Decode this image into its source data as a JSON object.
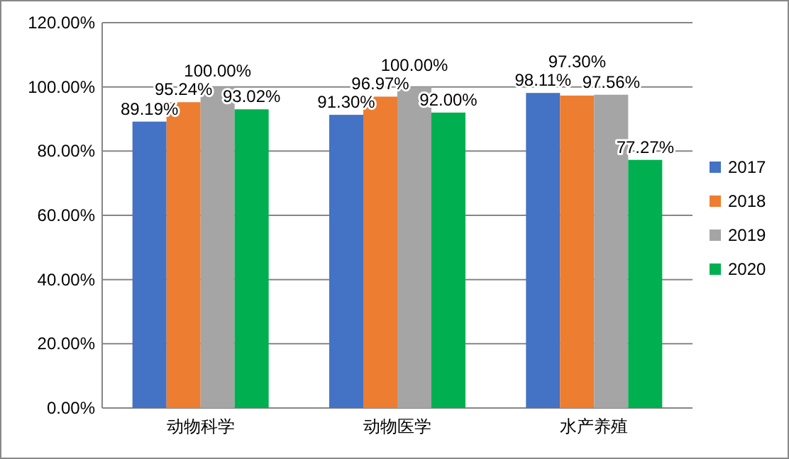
{
  "chart_data": {
    "type": "bar",
    "categories": [
      "动物科学",
      "动物医学",
      "水产养殖"
    ],
    "series": [
      {
        "name": "2017",
        "color": "#4472c4",
        "values": [
          89.19,
          91.3,
          98.11
        ],
        "value_labels": [
          "89.19%",
          "91.30%",
          "98.11%"
        ]
      },
      {
        "name": "2018",
        "color": "#ed7d31",
        "values": [
          95.24,
          96.97,
          97.3
        ],
        "value_labels": [
          "95.24%",
          "96.97%",
          "97.30%"
        ]
      },
      {
        "name": "2019",
        "color": "#a5a5a5",
        "values": [
          100.0,
          100.0,
          97.56
        ],
        "value_labels": [
          "100.00%",
          "100.00%",
          "97.56%"
        ]
      },
      {
        "name": "2020",
        "color": "#00b050",
        "values": [
          93.02,
          92.0,
          77.27
        ],
        "value_labels": [
          "93.02%",
          "92.00%",
          "77.27%"
        ]
      }
    ],
    "ylim": [
      0,
      120
    ],
    "yticks": [
      {
        "value": 0,
        "label": "0.00%"
      },
      {
        "value": 20,
        "label": "20.00%"
      },
      {
        "value": 40,
        "label": "40.00%"
      },
      {
        "value": 60,
        "label": "60.00%"
      },
      {
        "value": 80,
        "label": "80.00%"
      },
      {
        "value": 100,
        "label": "100.00%"
      },
      {
        "value": 120,
        "label": "120.00%"
      }
    ],
    "grid": "y",
    "legend": "right"
  }
}
